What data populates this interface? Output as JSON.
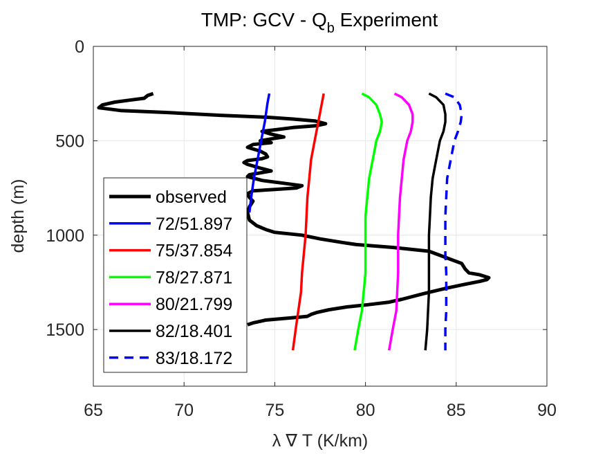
{
  "chart_data": {
    "type": "line",
    "title": "TMP: GCV - Q",
    "title_subscript": "b",
    "title_suffix": " Experiment",
    "xlabel": "λ ∇ T (K/km)",
    "ylabel": "depth (m)",
    "xlim": [
      65,
      90
    ],
    "ylim": [
      0,
      1800
    ],
    "y_reversed": true,
    "grid": true,
    "legend_position": "bottom-left",
    "x_ticks": [
      "65",
      "70",
      "75",
      "80",
      "85",
      "90"
    ],
    "y_ticks": [
      "0",
      "500",
      "1000",
      "1500"
    ],
    "series": [
      {
        "name": "observed",
        "color": "#000000",
        "dash": "solid",
        "width": "thick",
        "points": [
          [
            68.3,
            250
          ],
          [
            68.0,
            260
          ],
          [
            67.8,
            275
          ],
          [
            67.0,
            285
          ],
          [
            66.2,
            295
          ],
          [
            65.5,
            310
          ],
          [
            65.3,
            325
          ],
          [
            66.5,
            340
          ],
          [
            69,
            350
          ],
          [
            72,
            365
          ],
          [
            74.5,
            375
          ],
          [
            76,
            385
          ],
          [
            77.2,
            395
          ],
          [
            77.8,
            410
          ],
          [
            77.3,
            420
          ],
          [
            76.0,
            430
          ],
          [
            75.2,
            440
          ],
          [
            74.3,
            450
          ],
          [
            74.8,
            465
          ],
          [
            75.5,
            480
          ],
          [
            74.8,
            490
          ],
          [
            74.2,
            500
          ],
          [
            74.8,
            510
          ],
          [
            73.8,
            520
          ],
          [
            73.5,
            535
          ],
          [
            74.2,
            555
          ],
          [
            74.5,
            570
          ],
          [
            74.6,
            585
          ],
          [
            74.3,
            595
          ],
          [
            73.5,
            605
          ],
          [
            73.3,
            615
          ],
          [
            73.5,
            625
          ],
          [
            74.2,
            645
          ],
          [
            74.8,
            660
          ],
          [
            74.2,
            670
          ],
          [
            73.6,
            680
          ],
          [
            73.5,
            690
          ],
          [
            74.3,
            710
          ],
          [
            75.5,
            725
          ],
          [
            76.5,
            738
          ],
          [
            76.2,
            750
          ],
          [
            75.0,
            758
          ],
          [
            73.8,
            765
          ],
          [
            73.5,
            780
          ],
          [
            73.6,
            800
          ],
          [
            73.8,
            820
          ],
          [
            73.6,
            850
          ],
          [
            73.5,
            880
          ],
          [
            73.6,
            920
          ],
          [
            74.0,
            950
          ],
          [
            74.5,
            970
          ],
          [
            75.0,
            985
          ],
          [
            76.5,
            1000
          ],
          [
            77.5,
            1020
          ],
          [
            78.8,
            1040
          ],
          [
            79.5,
            1050
          ],
          [
            81.5,
            1065
          ],
          [
            83.5,
            1085
          ],
          [
            85.3,
            1150
          ],
          [
            85.5,
            1180
          ],
          [
            85.7,
            1200
          ],
          [
            86.3,
            1210
          ],
          [
            86.8,
            1225
          ],
          [
            86.7,
            1235
          ],
          [
            86.3,
            1245
          ],
          [
            85.5,
            1260
          ],
          [
            84.5,
            1280
          ],
          [
            83.2,
            1310
          ],
          [
            82.0,
            1340
          ],
          [
            81.3,
            1355
          ],
          [
            80.0,
            1370
          ],
          [
            79.0,
            1380
          ],
          [
            78.0,
            1395
          ],
          [
            77.3,
            1410
          ],
          [
            77.0,
            1420
          ],
          [
            76.8,
            1430
          ],
          [
            76.3,
            1435
          ],
          [
            74.5,
            1450
          ],
          [
            73.8,
            1465
          ],
          [
            73.5,
            1475
          ]
        ]
      },
      {
        "name": "72/51.897",
        "color": "#0000ff",
        "dash": "solid",
        "width": "normal",
        "points": [
          [
            74.7,
            250
          ],
          [
            74.6,
            300
          ],
          [
            74.45,
            400
          ],
          [
            74.25,
            500
          ],
          [
            74.05,
            600
          ],
          [
            73.85,
            700
          ],
          [
            73.7,
            800
          ],
          [
            73.6,
            880
          ]
        ]
      },
      {
        "name": "75/37.854",
        "color": "#ff0000",
        "dash": "solid",
        "width": "normal",
        "points": [
          [
            77.7,
            250
          ],
          [
            77.6,
            300
          ],
          [
            77.4,
            400
          ],
          [
            77.2,
            500
          ],
          [
            77.0,
            600
          ],
          [
            76.9,
            700
          ],
          [
            76.8,
            800
          ],
          [
            76.75,
            900
          ],
          [
            76.7,
            1000
          ],
          [
            76.6,
            1100
          ],
          [
            76.5,
            1200
          ],
          [
            76.45,
            1300
          ],
          [
            76.3,
            1400
          ],
          [
            76.15,
            1500
          ],
          [
            76.0,
            1610
          ]
        ]
      },
      {
        "name": "78/27.871",
        "color": "#00ff00",
        "dash": "solid",
        "width": "normal",
        "points": [
          [
            79.8,
            250
          ],
          [
            80.2,
            270
          ],
          [
            80.6,
            310
          ],
          [
            80.8,
            360
          ],
          [
            80.9,
            400
          ],
          [
            80.8,
            450
          ],
          [
            80.6,
            500
          ],
          [
            80.4,
            600
          ],
          [
            80.2,
            700
          ],
          [
            80.1,
            800
          ],
          [
            80.0,
            900
          ],
          [
            80.0,
            1000
          ],
          [
            80.0,
            1100
          ],
          [
            80.0,
            1200
          ],
          [
            79.9,
            1300
          ],
          [
            79.8,
            1400
          ],
          [
            79.6,
            1500
          ],
          [
            79.4,
            1610
          ]
        ]
      },
      {
        "name": "80/21.799",
        "color": "#ff00ff",
        "dash": "solid",
        "width": "normal",
        "points": [
          [
            81.6,
            250
          ],
          [
            82.0,
            270
          ],
          [
            82.4,
            310
          ],
          [
            82.6,
            360
          ],
          [
            82.6,
            400
          ],
          [
            82.5,
            450
          ],
          [
            82.3,
            500
          ],
          [
            82.1,
            600
          ],
          [
            82.0,
            700
          ],
          [
            81.9,
            800
          ],
          [
            81.85,
            900
          ],
          [
            81.8,
            1000
          ],
          [
            81.8,
            1100
          ],
          [
            81.8,
            1200
          ],
          [
            81.75,
            1300
          ],
          [
            81.7,
            1400
          ],
          [
            81.5,
            1500
          ],
          [
            81.3,
            1610
          ]
        ]
      },
      {
        "name": "82/18.401",
        "color": "#000000",
        "dash": "solid",
        "width": "normal",
        "points": [
          [
            83.5,
            250
          ],
          [
            83.9,
            270
          ],
          [
            84.3,
            310
          ],
          [
            84.4,
            360
          ],
          [
            84.4,
            400
          ],
          [
            84.3,
            450
          ],
          [
            84.1,
            500
          ],
          [
            83.9,
            600
          ],
          [
            83.7,
            700
          ],
          [
            83.6,
            800
          ],
          [
            83.55,
            900
          ],
          [
            83.5,
            1000
          ],
          [
            83.5,
            1100
          ],
          [
            83.5,
            1200
          ],
          [
            83.5,
            1300
          ],
          [
            83.45,
            1400
          ],
          [
            83.4,
            1500
          ],
          [
            83.3,
            1610
          ]
        ]
      },
      {
        "name": "83/18.172",
        "color": "#0000ff",
        "dash": "dashed",
        "width": "normal",
        "points": [
          [
            84.4,
            250
          ],
          [
            84.9,
            270
          ],
          [
            85.2,
            310
          ],
          [
            85.3,
            360
          ],
          [
            85.25,
            400
          ],
          [
            85.1,
            450
          ],
          [
            84.9,
            500
          ],
          [
            84.7,
            600
          ],
          [
            84.5,
            700
          ],
          [
            84.45,
            800
          ],
          [
            84.4,
            900
          ],
          [
            84.4,
            1000
          ],
          [
            84.4,
            1100
          ],
          [
            84.45,
            1200
          ],
          [
            84.45,
            1300
          ],
          [
            84.45,
            1400
          ],
          [
            84.4,
            1500
          ],
          [
            84.4,
            1610
          ]
        ]
      }
    ]
  }
}
